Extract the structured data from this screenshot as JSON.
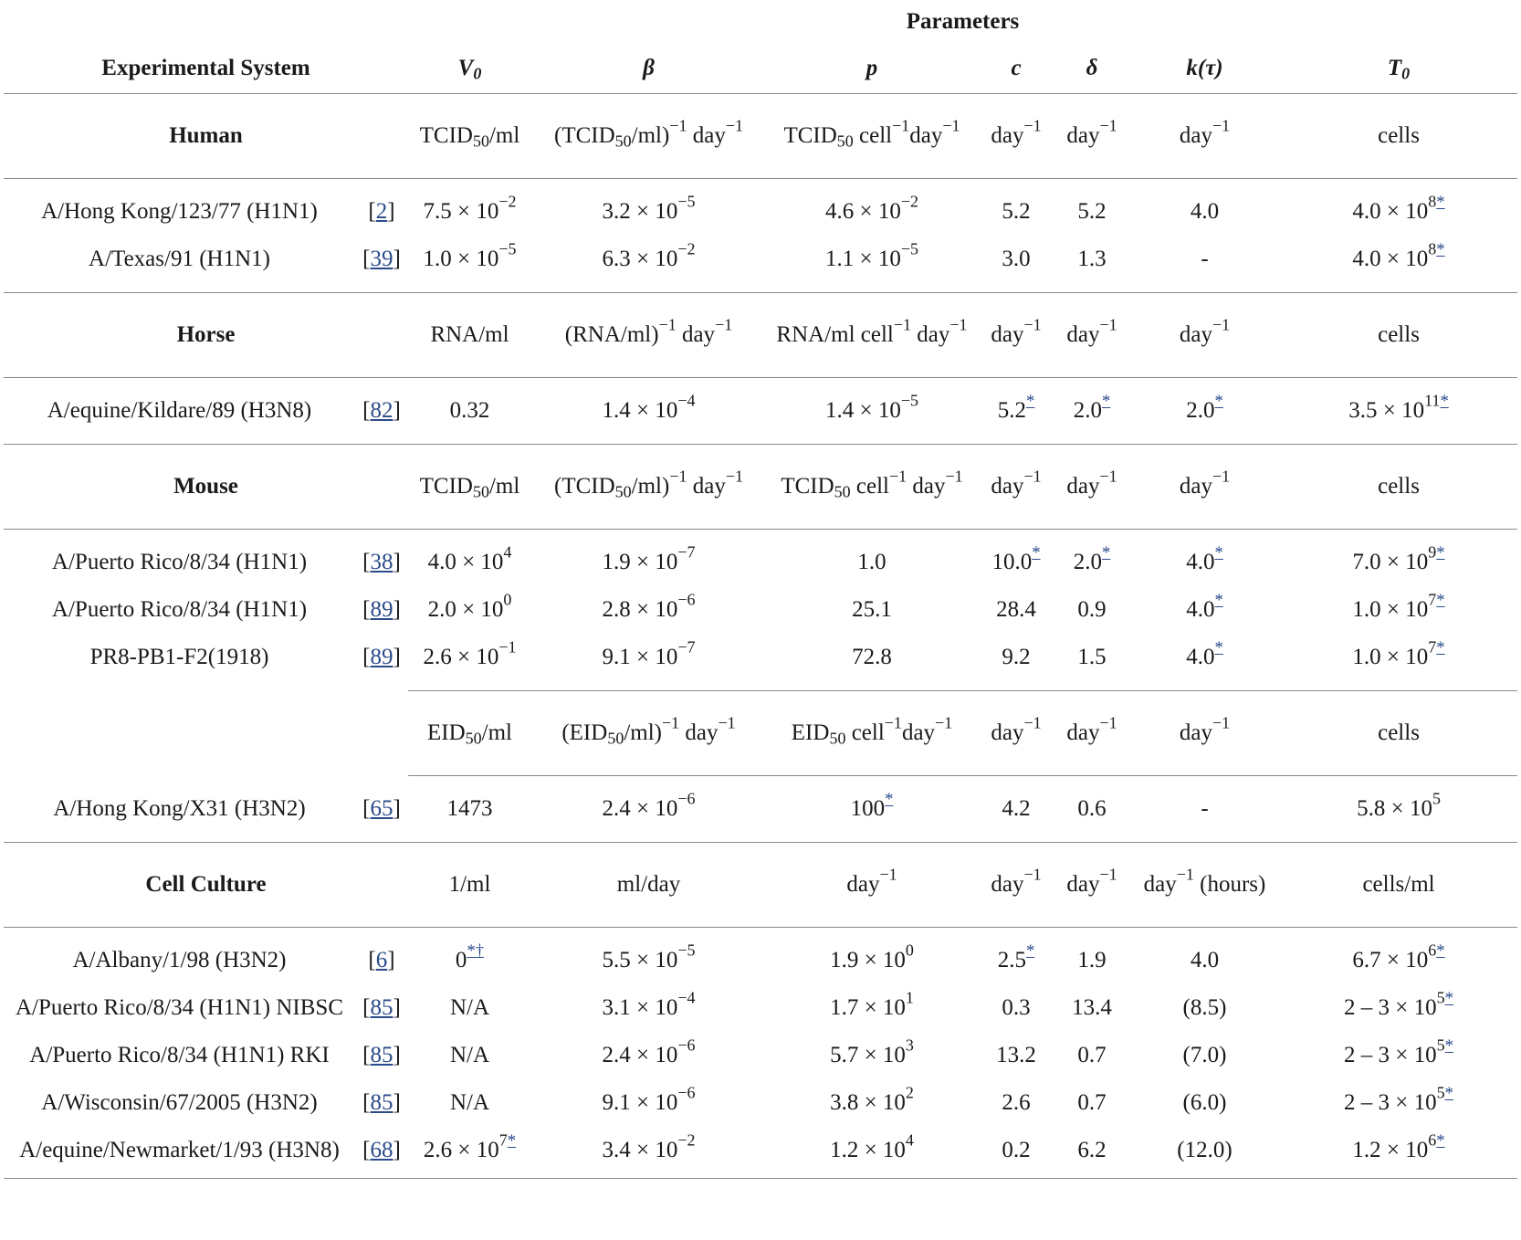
{
  "header": {
    "parameters_label": "Parameters",
    "system_label": "Experimental System",
    "columns": [
      "V0",
      "β",
      "p",
      "c",
      "δ",
      "k(τ)",
      "T0"
    ]
  },
  "groups": [
    {
      "name": "Human",
      "units": [
        "TCID50/ml",
        "(TCID50/ml)−1 day−1",
        "TCID50 cell−1day−1",
        "day−1",
        "day−1",
        "day−1",
        "cells"
      ],
      "rows": [
        {
          "system": "A/Hong Kong/123/77 (H1N1)",
          "ref": "2",
          "v0": "7.5 × 10−2",
          "beta": "3.2 × 10−5",
          "p": "4.6 × 10−2",
          "c": "5.2",
          "delta": "5.2",
          "k": "4.0",
          "t0": "4.0 × 108*"
        },
        {
          "system": "A/Texas/91 (H1N1)",
          "ref": "39",
          "v0": "1.0 × 10−5",
          "beta": "6.3 × 10−2",
          "p": "1.1 × 10−5",
          "c": "3.0",
          "delta": "1.3",
          "k": "-",
          "t0": "4.0 × 108*"
        }
      ]
    },
    {
      "name": "Horse",
      "units": [
        "RNA/ml",
        "(RNA/ml)−1 day−1",
        "RNA/ml cell−1 day−1",
        "day−1",
        "day−1",
        "day−1",
        "cells"
      ],
      "rows": [
        {
          "system": "A/equine/Kildare/89 (H3N8)",
          "ref": "82",
          "v0": "0.32",
          "beta": "1.4 × 10−4",
          "p": "1.4 × 10−5",
          "c": "5.2*",
          "delta": "2.0*",
          "k": "2.0*",
          "t0": "3.5 × 1011*"
        }
      ]
    },
    {
      "name": "Mouse",
      "units": [
        "TCID50/ml",
        "(TCID50/ml)−1 day−1",
        "TCID50 cell−1 day−1",
        "day−1",
        "day−1",
        "day−1",
        "cells"
      ],
      "rows": [
        {
          "system": "A/Puerto Rico/8/34 (H1N1)",
          "ref": "38",
          "v0": "4.0 × 104",
          "beta": "1.9 × 10−7",
          "p": "1.0",
          "c": "10.0*",
          "delta": "2.0*",
          "k": "4.0*",
          "t0": "7.0 × 109*"
        },
        {
          "system": "A/Puerto Rico/8/34 (H1N1)",
          "ref": "89",
          "v0": "2.0 × 100",
          "beta": "2.8 × 10−6",
          "p": "25.1",
          "c": "28.4",
          "delta": "0.9",
          "k": "4.0*",
          "t0": "1.0 × 107*"
        },
        {
          "system": "PR8-PB1-F2(1918)",
          "ref": "89",
          "v0": "2.6 × 10−1",
          "beta": "9.1 × 10−7",
          "p": "72.8",
          "c": "9.2",
          "delta": "1.5",
          "k": "4.0*",
          "t0": "1.0 × 107*"
        }
      ],
      "subunits": [
        "EID50/ml",
        "(EID50/ml)−1 day−1",
        "EID50 cell−1day−1",
        "day−1",
        "day−1",
        "day−1",
        "cells"
      ],
      "subrows": [
        {
          "system": "A/Hong Kong/X31 (H3N2)",
          "ref": "65",
          "v0": "1473",
          "beta": "2.4 × 10−6",
          "p": "100*",
          "c": "4.2",
          "delta": "0.6",
          "k": "-",
          "t0": "5.8 × 105"
        }
      ]
    },
    {
      "name": "Cell Culture",
      "units": [
        "1/ml",
        "ml/day",
        "day−1",
        "day−1",
        "day−1",
        "day−1 (hours)",
        "cells/ml"
      ],
      "rows": [
        {
          "system": "A/Albany/1/98 (H3N2)",
          "ref": "6",
          "v0": "0*†",
          "beta": "5.5 × 10−5",
          "p": "1.9 × 100",
          "c": "2.5*",
          "delta": "1.9",
          "k": "4.0",
          "t0": "6.7 × 106*"
        },
        {
          "system": "A/Puerto Rico/8/34 (H1N1) NIBSC",
          "ref": "85",
          "v0": "N/A",
          "beta": "3.1 × 10−4",
          "p": "1.7 × 101",
          "c": "0.3",
          "delta": "13.4",
          "k": "(8.5)",
          "t0": "2 – 3 × 105*"
        },
        {
          "system": "A/Puerto Rico/8/34 (H1N1) RKI",
          "ref": "85",
          "v0": "N/A",
          "beta": "2.4 × 10−6",
          "p": "5.7 × 103",
          "c": "13.2",
          "delta": "0.7",
          "k": "(7.0)",
          "t0": "2 – 3 × 105*"
        },
        {
          "system": "A/Wisconsin/67/2005 (H3N2)",
          "ref": "85",
          "v0": "N/A",
          "beta": "9.1 × 10−6",
          "p": "3.8 × 102",
          "c": "2.6",
          "delta": "0.7",
          "k": "(6.0)",
          "t0": "2 – 3 × 105*"
        },
        {
          "system": "A/equine/Newmarket/1/93 (H3N8)",
          "ref": "68",
          "v0": "2.6 × 107*",
          "beta": "3.4 × 10−2",
          "p": "1.2 × 104",
          "c": "0.2",
          "delta": "6.2",
          "k": "(12.0)",
          "t0": "1.2 × 106*"
        }
      ]
    }
  ]
}
